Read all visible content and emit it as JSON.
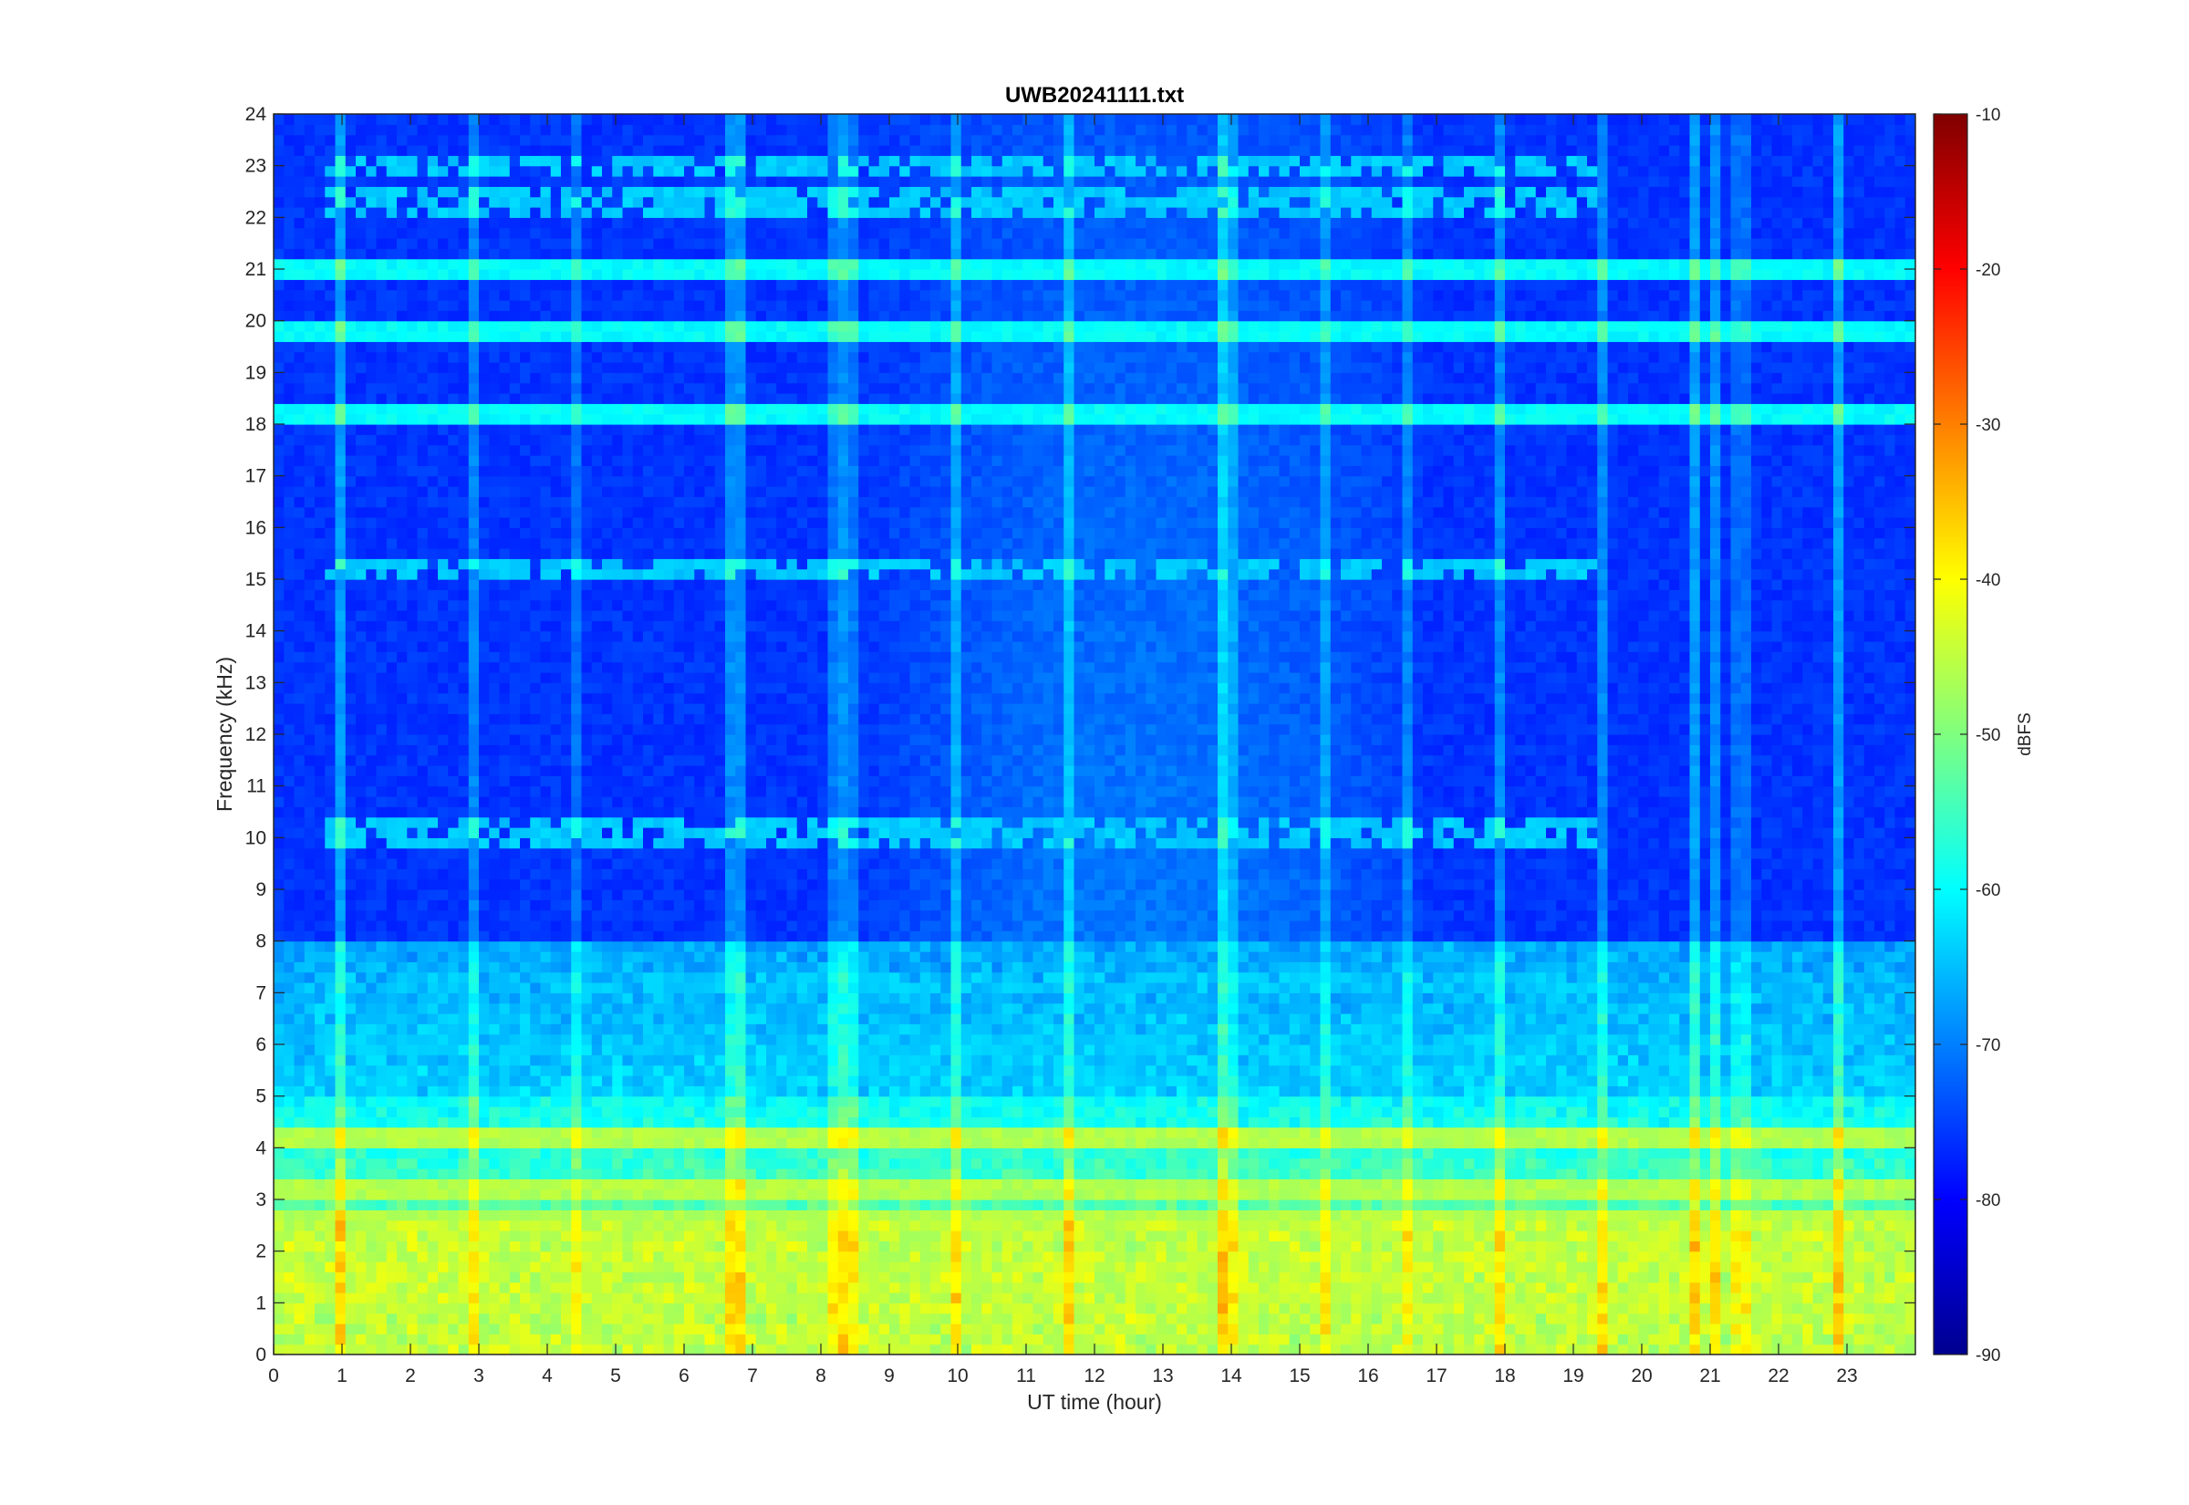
{
  "chart_data": {
    "type": "heatmap",
    "title": "UWB20241111.txt",
    "xlabel": "UT time (hour)",
    "ylabel": "Frequency (kHz)",
    "xlim": [
      0,
      24
    ],
    "ylim": [
      0,
      24
    ],
    "x_ticks": [
      "0",
      "1",
      "2",
      "3",
      "4",
      "5",
      "6",
      "7",
      "8",
      "9",
      "10",
      "11",
      "12",
      "13",
      "14",
      "15",
      "16",
      "17",
      "18",
      "19",
      "20",
      "21",
      "22",
      "23"
    ],
    "y_ticks": [
      "0",
      "1",
      "2",
      "3",
      "4",
      "5",
      "6",
      "7",
      "8",
      "9",
      "10",
      "11",
      "12",
      "13",
      "14",
      "15",
      "16",
      "17",
      "18",
      "19",
      "20",
      "21",
      "22",
      "23",
      "24"
    ],
    "colorbar": {
      "label": "dBFS",
      "range": [
        -90,
        -10
      ],
      "colormap": "jet",
      "ticks": [
        "-10",
        "-20",
        "-30",
        "-40",
        "-50",
        "-60",
        "-70",
        "-80",
        "-90"
      ]
    },
    "colors": {
      "background_level_dbfs": -76,
      "frame": "#262626"
    },
    "features": {
      "strong_low_band_khz": [
        0,
        2.6
      ],
      "low_band_level_dbfs": -45,
      "persistent_lines_khz": [
        19.85,
        18.2,
        21.0,
        4.25,
        3.2,
        2.5,
        1.1,
        1.85
      ],
      "intermittent_lines_khz": [
        15.2,
        10.1,
        7.2,
        6.0,
        22.3,
        23.0
      ],
      "daytime_enhancement_hours": [
        8.5,
        17
      ]
    }
  }
}
